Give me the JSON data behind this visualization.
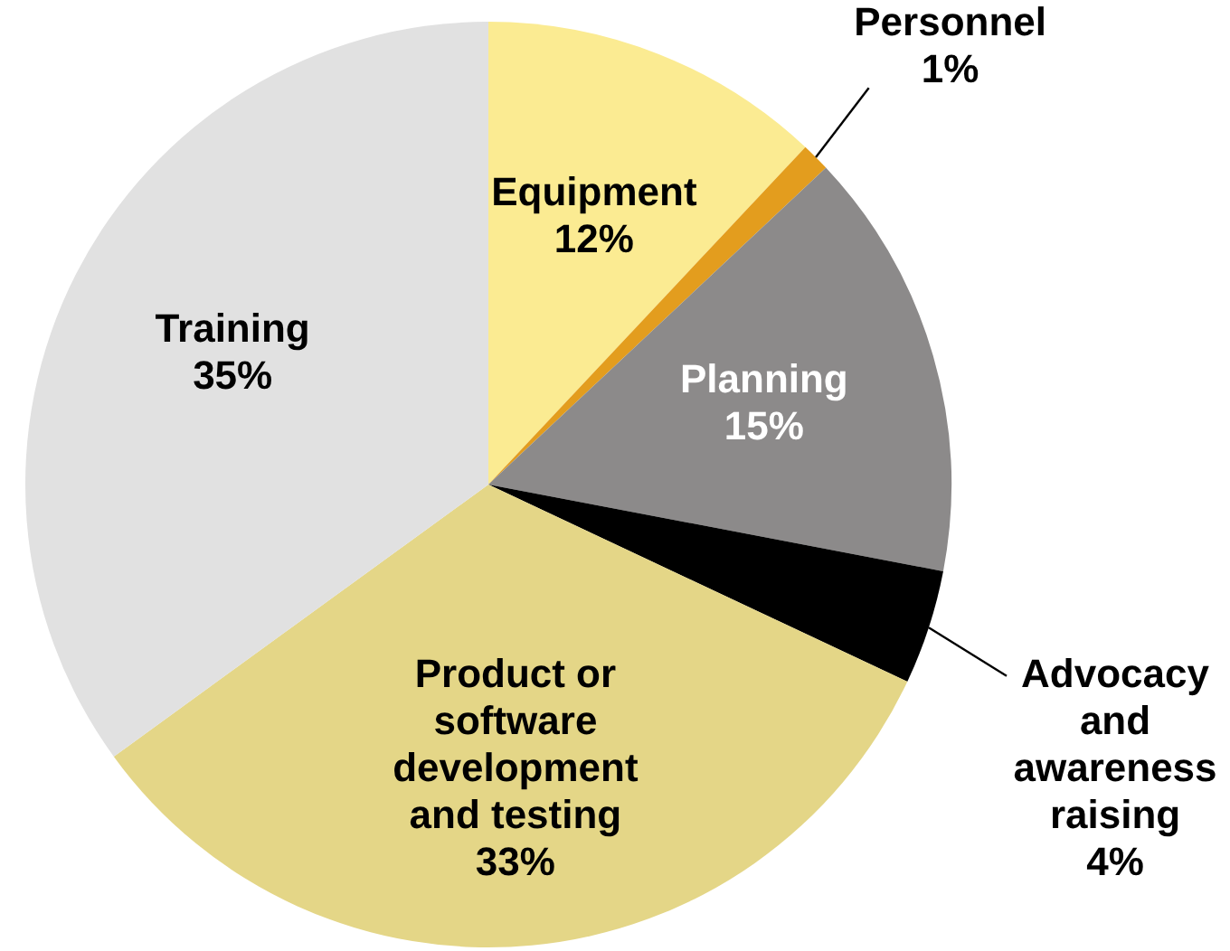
{
  "chart_data": {
    "type": "pie",
    "categories": [
      "Equipment",
      "Personnel",
      "Planning",
      "Advocacy and awareness raising",
      "Product or software development and testing",
      "Training"
    ],
    "values": [
      12,
      1,
      15,
      4,
      33,
      35
    ],
    "value_labels": [
      "12%",
      "1%",
      "15%",
      "4%",
      "33%",
      "35%"
    ],
    "colors": [
      "#fbeb92",
      "#e39d1e",
      "#8c8a8a",
      "#000000",
      "#e4d687",
      "#e1e1e1"
    ],
    "legend": false
  }
}
